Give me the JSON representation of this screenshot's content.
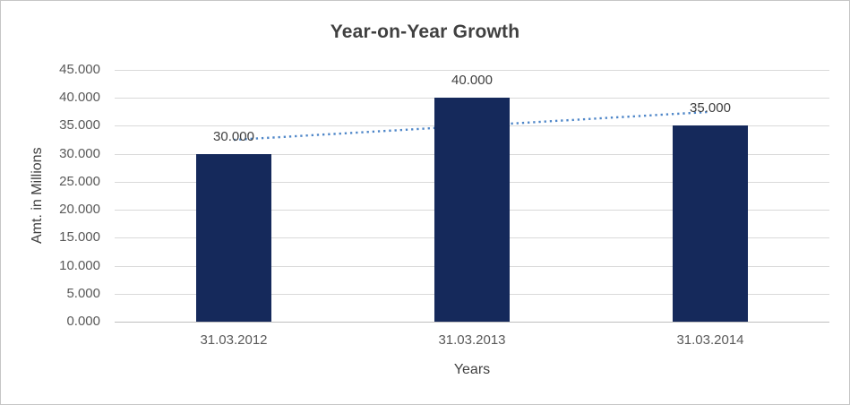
{
  "chart_data": {
    "type": "bar",
    "title": "Year-on-Year Growth",
    "xlabel": "Years",
    "ylabel": "Amt. in Millions",
    "categories": [
      "31.03.2012",
      "31.03.2013",
      "31.03.2014"
    ],
    "values": [
      30,
      40,
      35
    ],
    "value_labels": [
      "30.000",
      "40.000",
      "35.000"
    ],
    "ylim": [
      0,
      45
    ],
    "y_tick_step": 5,
    "y_tick_labels": [
      "0.000",
      "5.000",
      "10.000",
      "15.000",
      "20.000",
      "25.000",
      "30.000",
      "35.000",
      "40.000",
      "45.000"
    ],
    "grid": true,
    "legend": "none",
    "trendline": {
      "type": "linear",
      "style": "dotted",
      "start_value": 32.5,
      "end_value": 37.5
    },
    "colors": {
      "bar": "#15295B",
      "trendline": "#4E86C8",
      "gridline": "#D9D9D9",
      "axis_line": "#BFBFBF",
      "title_text": "#404040",
      "tick_text": "#595959",
      "axis_title_text": "#404040",
      "data_label_text": "#404040",
      "background": "#FFFFFF",
      "border": "#C6C6C6"
    }
  }
}
